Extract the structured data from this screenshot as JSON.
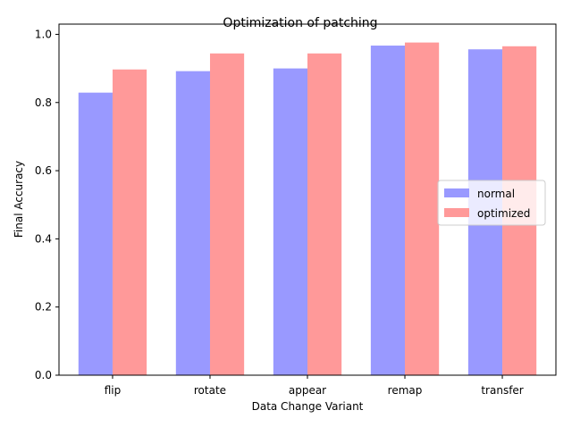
{
  "chart_data": {
    "type": "bar",
    "title": "Optimization of patching",
    "xlabel": "Data Change Variant",
    "ylabel": "Final Accuracy",
    "categories": [
      "flip",
      "rotate",
      "appear",
      "remap",
      "transfer"
    ],
    "series": [
      {
        "name": "normal",
        "values": [
          0.829,
          0.892,
          0.9,
          0.967,
          0.956
        ],
        "color": "#9999ff"
      },
      {
        "name": "optimized",
        "values": [
          0.897,
          0.944,
          0.944,
          0.976,
          0.965
        ],
        "color": "#ff9999"
      }
    ],
    "ylim": [
      0,
      1.03
    ],
    "yticks": [
      "0.0",
      "0.2",
      "0.4",
      "0.6",
      "0.8",
      "1.0"
    ],
    "grid": false,
    "legend_position": "right"
  }
}
